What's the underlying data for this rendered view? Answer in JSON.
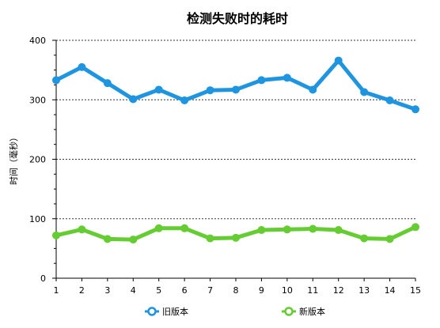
{
  "chart_data": {
    "type": "line",
    "title": "检测失败时的耗时",
    "xlabel": "",
    "ylabel": "时间（毫秒）",
    "categories": [
      "1",
      "2",
      "3",
      "4",
      "5",
      "6",
      "7",
      "8",
      "9",
      "10",
      "11",
      "12",
      "13",
      "14",
      "15"
    ],
    "ylim": [
      0,
      400
    ],
    "yticks": [
      "0",
      "100",
      "200",
      "300",
      "400"
    ],
    "grid": "horizontal-dotted",
    "legend_position": "bottom",
    "series": [
      {
        "name": "旧版本",
        "color": "#1f95e0",
        "marker_fill": "#ffffff",
        "values": [
          333,
          355,
          328,
          301,
          317,
          299,
          316,
          317,
          333,
          337,
          317,
          366,
          313,
          299,
          284
        ]
      },
      {
        "name": "新版本",
        "color": "#66cc33",
        "marker_fill": "#ffffff",
        "values": [
          72,
          82,
          66,
          65,
          84,
          84,
          67,
          68,
          81,
          82,
          83,
          81,
          67,
          66,
          86
        ]
      }
    ]
  }
}
